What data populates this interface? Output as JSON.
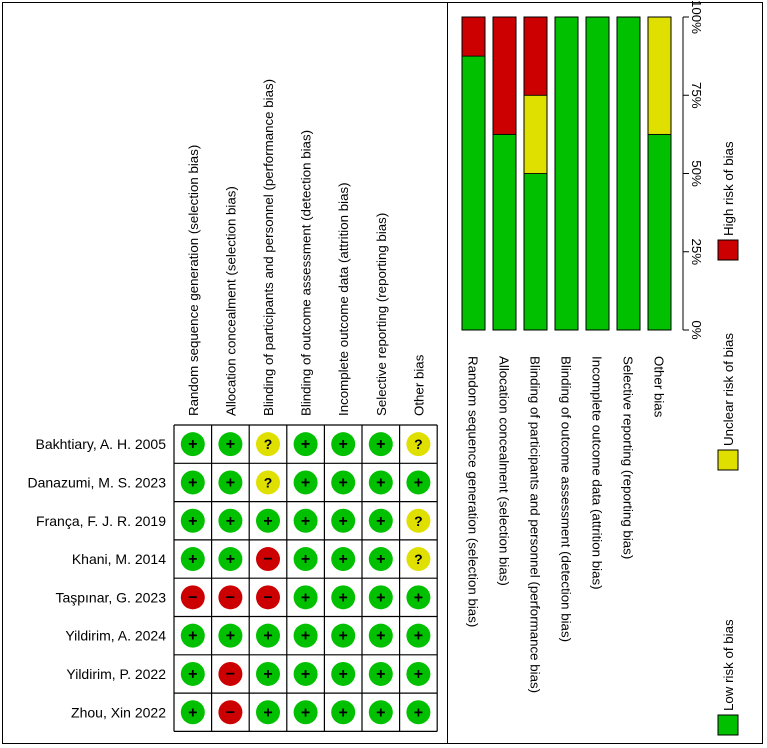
{
  "summary_table": {
    "domains": [
      "Random sequence generation (selection bias)",
      "Allocation concealment (selection bias)",
      "Blinding of participants and personnel (performance bias)",
      "Blinding of outcome assessment (detection bias)",
      "Incomplete outcome data (attrition bias)",
      "Selective reporting (reporting bias)",
      "Other bias"
    ],
    "studies": [
      {
        "name": "Bakhtiary, A. H. 2005",
        "judgements": [
          "+",
          "+",
          "?",
          "+",
          "+",
          "+",
          "?"
        ]
      },
      {
        "name": "Danazumi, M. S. 2023",
        "judgements": [
          "+",
          "+",
          "?",
          "+",
          "+",
          "+",
          "+"
        ]
      },
      {
        "name": "França, F. J. R. 2019",
        "judgements": [
          "+",
          "+",
          "+",
          "+",
          "+",
          "+",
          "?"
        ]
      },
      {
        "name": "Khani, M. 2014",
        "judgements": [
          "+",
          "+",
          "−",
          "+",
          "+",
          "+",
          "?"
        ]
      },
      {
        "name": "Taşpınar, G. 2023",
        "judgements": [
          "−",
          "−",
          "−",
          "+",
          "+",
          "+",
          "+"
        ]
      },
      {
        "name": "Yildirim, A. 2024",
        "judgements": [
          "+",
          "+",
          "+",
          "+",
          "+",
          "+",
          "+"
        ]
      },
      {
        "name": "Yildirim, P. 2022",
        "judgements": [
          "+",
          "−",
          "+",
          "+",
          "+",
          "+",
          "+"
        ]
      },
      {
        "name": "Zhou, Xin 2022",
        "judgements": [
          "+",
          "−",
          "+",
          "+",
          "+",
          "+",
          "+"
        ]
      }
    ]
  },
  "chart_data": {
    "type": "bar",
    "orientation": "stacked-100-percent",
    "categories": [
      "Random sequence generation (selection bias)",
      "Allocation concealment (selection bias)",
      "Blinding of participants and personnel (performance bias)",
      "Blinding of outcome assessment (detection bias)",
      "Incomplete outcome data (attrition bias)",
      "Selective reporting (reporting bias)",
      "Other bias"
    ],
    "series": [
      {
        "name": "Low risk of bias",
        "color": "#00c000",
        "values": [
          87.5,
          62.5,
          50,
          100,
          100,
          100,
          62.5
        ]
      },
      {
        "name": "Unclear risk of bias",
        "color": "#e0e000",
        "values": [
          0,
          0,
          25,
          0,
          0,
          0,
          37.5
        ]
      },
      {
        "name": "High risk of bias",
        "color": "#cc0000",
        "values": [
          12.5,
          37.5,
          25,
          0,
          0,
          0,
          0
        ]
      }
    ],
    "tick_labels": [
      "0%",
      "25%",
      "50%",
      "75%",
      "100%"
    ],
    "ylim": [
      0,
      100
    ],
    "legend": [
      "Low risk of bias",
      "Unclear risk of bias",
      "High risk of bias"
    ],
    "legend_position": "bottom"
  },
  "colors": {
    "low": "#00c000",
    "unclear": "#e0e000",
    "high": "#cc0000"
  }
}
